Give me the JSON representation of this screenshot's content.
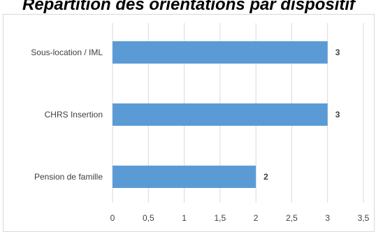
{
  "chart_data": {
    "type": "bar",
    "orientation": "horizontal",
    "title": "Répartition des orientations par dispositif",
    "categories": [
      "Sous-location / IML",
      "CHRS Insertion",
      "Pension de famille"
    ],
    "values": [
      3,
      3,
      2
    ],
    "value_labels": [
      "3",
      "3",
      "2"
    ],
    "xlim": [
      0,
      3.5
    ],
    "ticks": [
      0,
      0.5,
      1,
      1.5,
      2,
      2.5,
      3,
      3.5
    ],
    "tick_labels": [
      "0",
      "0,5",
      "1",
      "1,5",
      "2",
      "2,5",
      "3",
      "3,5"
    ],
    "grid": "vertical",
    "bar_color": "#5b9bd5",
    "gridline_color": "#d9d9d9",
    "label_color": "#404040"
  }
}
